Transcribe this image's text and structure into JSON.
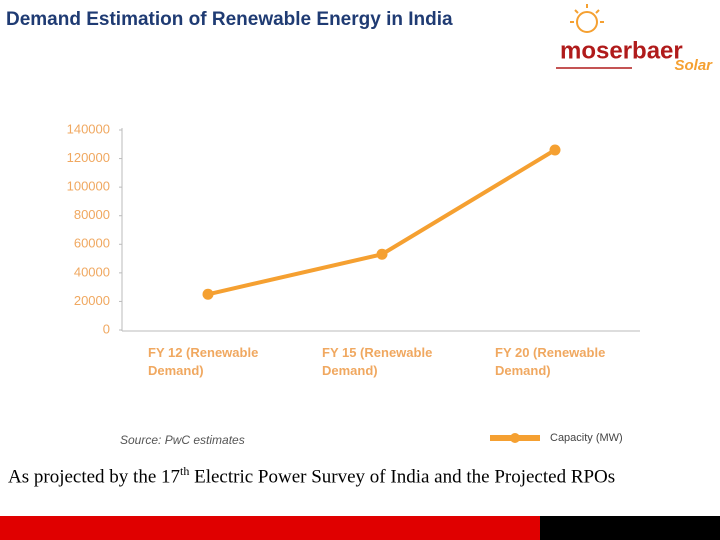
{
  "header": {
    "title": "Demand Estimation of  Renewable Energy in India",
    "logo_brand": "moserbaer",
    "logo_sub": "Solar"
  },
  "chart_data": {
    "type": "line",
    "categories": [
      "FY 12 (Renewable Demand)",
      "FY 15 (Renewable Demand)",
      "FY 20 (Renewable Demand)"
    ],
    "series": [
      {
        "name": "Capacity (MW)",
        "color": "#f5a031",
        "values": [
          25000,
          53000,
          126000
        ]
      }
    ],
    "ylim": [
      0,
      140000
    ],
    "yticks": [
      0,
      20000,
      40000,
      60000,
      80000,
      100000,
      120000,
      140000
    ],
    "source": "Source: PwC estimates",
    "legend": "bottom-right"
  },
  "caption": {
    "before": "As projected by the 17",
    "sup": "th",
    "after": " Electric Power Survey of India and the Projected RPOs"
  }
}
